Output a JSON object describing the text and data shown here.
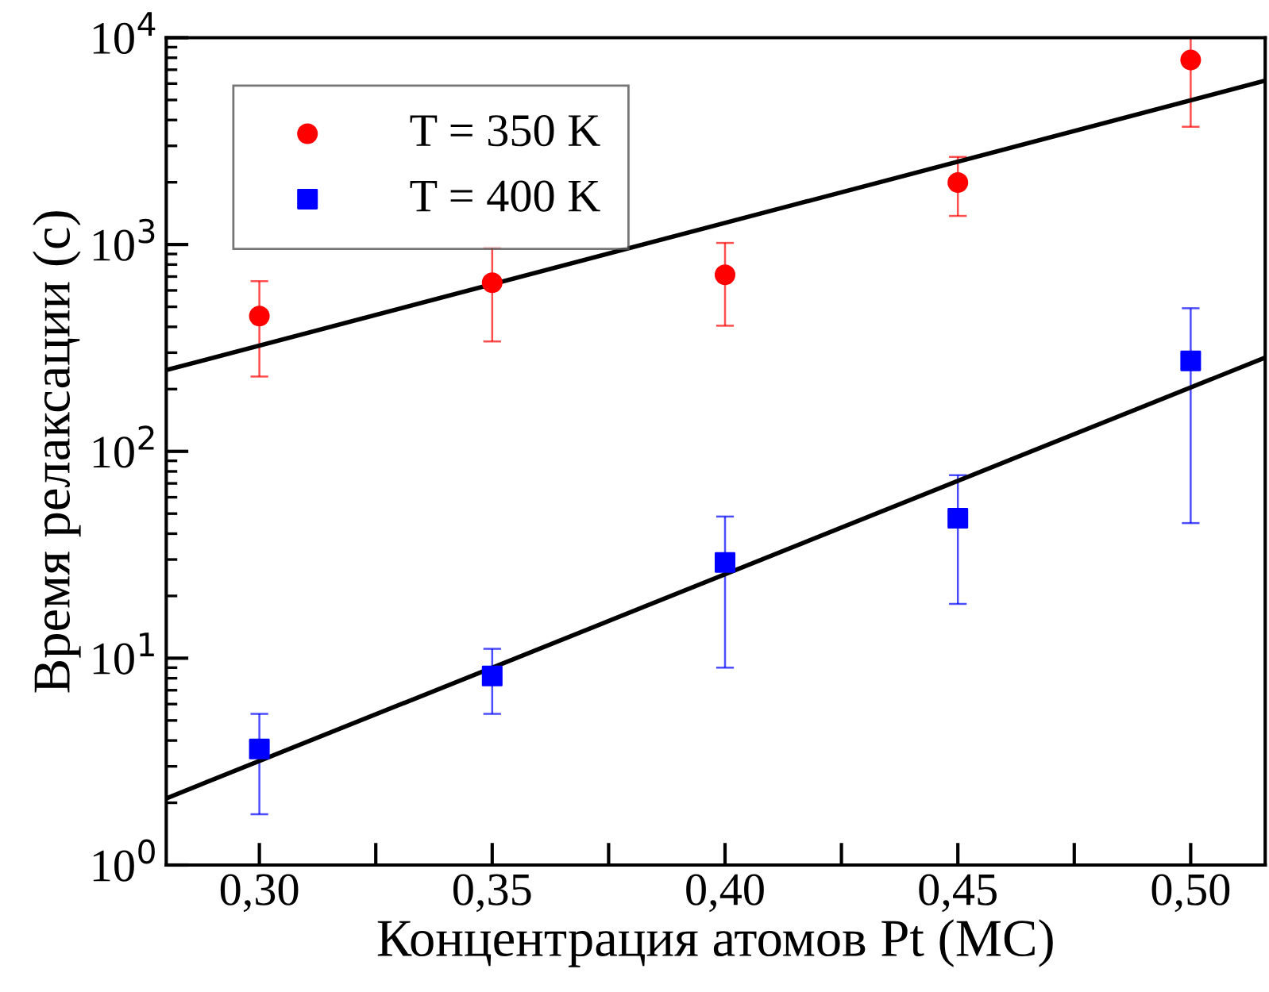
{
  "chart_data": {
    "type": "scatter",
    "xlabel": "Концентрация атомов Pt (МС)",
    "ylabel": "Время релаксации (с)",
    "log": "y",
    "xlim": [
      0.28,
      0.516
    ],
    "ylim": [
      1,
      10000
    ],
    "xticks": [
      {
        "value": 0.3,
        "label": "0,30"
      },
      {
        "value": 0.325,
        "label": null
      },
      {
        "value": 0.35,
        "label": "0,35"
      },
      {
        "value": 0.375,
        "label": null
      },
      {
        "value": 0.4,
        "label": "0,40"
      },
      {
        "value": 0.425,
        "label": null
      },
      {
        "value": 0.45,
        "label": "0,45"
      },
      {
        "value": 0.475,
        "label": null
      },
      {
        "value": 0.5,
        "label": "0,50"
      }
    ],
    "yticks": [
      {
        "value": 1,
        "label": "10$^{0}$"
      },
      {
        "value": 10,
        "label": "10$^{1}$"
      },
      {
        "value": 100,
        "label": "10$^{2}$"
      },
      {
        "value": 1000,
        "label": "10$^{3}$"
      },
      {
        "value": 10000,
        "label": "10$^{4}$"
      }
    ],
    "grid": false,
    "legend": "top left",
    "series": [
      {
        "name": "T = 350 K",
        "color": "#ff0000",
        "marker": "circle",
        "x": [
          0.3,
          0.35,
          0.4,
          0.45,
          0.5
        ],
        "values": [
          451,
          654,
          714,
          1995,
          7800
        ],
        "errors": [
          [
            230,
            665
          ],
          [
            340,
            966
          ],
          [
            405,
            1018
          ],
          [
            1375,
            2650
          ],
          [
            3710,
            10000
          ]
        ]
      },
      {
        "name": "T = 400 K",
        "color": "#0000ff",
        "marker": "square",
        "x": [
          0.3,
          0.35,
          0.4,
          0.45,
          0.5
        ],
        "values": [
          3.64,
          8.2,
          29,
          47.5,
          274
        ],
        "errors": [
          [
            1.76,
            5.38
          ],
          [
            5.38,
            11.1
          ],
          [
            9.0,
            48.4
          ],
          [
            18.3,
            76.7
          ],
          [
            45,
            492
          ]
        ]
      },
      {
        "type": "line",
        "color": "#000000",
        "marker": "none",
        "x": [
          0.28,
          0.516
        ],
        "values": [
          247,
          6200
        ]
      },
      {
        "type": "line",
        "color": "#000000",
        "marker": "none",
        "x": [
          0.28,
          0.516
        ],
        "values": [
          2.1,
          284
        ]
      }
    ]
  }
}
